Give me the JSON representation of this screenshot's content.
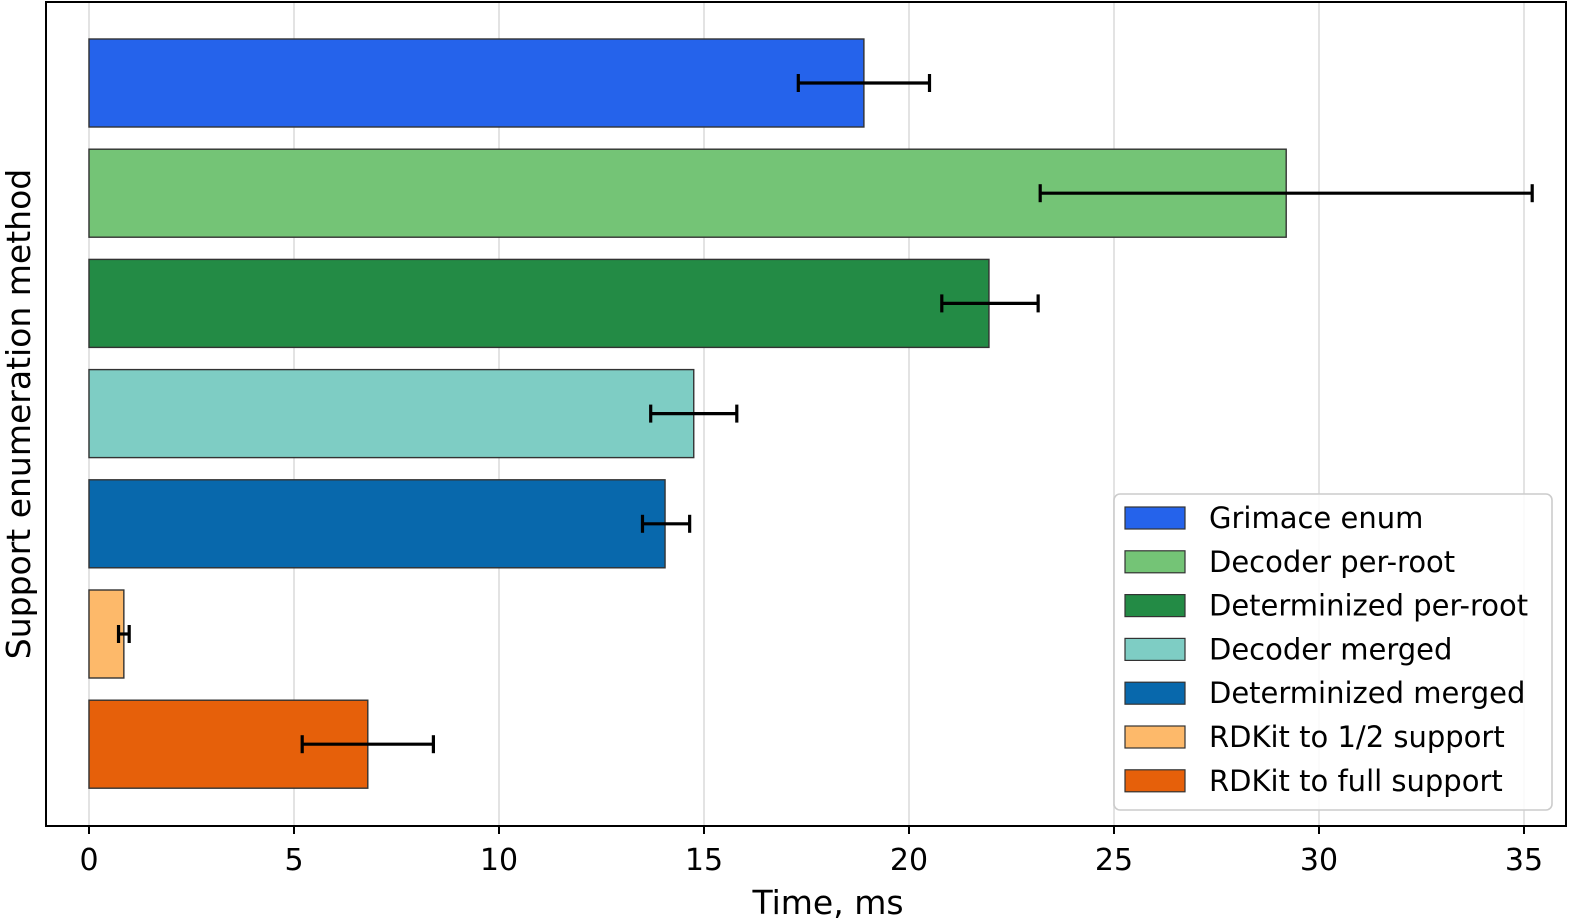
{
  "chart_data": {
    "type": "bar",
    "orientation": "horizontal",
    "xlabel": "Time, ms",
    "ylabel": "Support enumeration method",
    "xlim": [
      -1.05,
      35.6
    ],
    "xticks": [
      0,
      5,
      10,
      15,
      20,
      25,
      30,
      35
    ],
    "grid": "vertical",
    "legend_position": "lower-right",
    "bars": [
      {
        "name": "Grimace enum",
        "value": 18.9,
        "err_low": 17.3,
        "err_high": 20.5,
        "color": "#2563EB"
      },
      {
        "name": "Decoder per-root",
        "value": 29.2,
        "err_low": 23.2,
        "err_high": 35.2,
        "color": "#74C476"
      },
      {
        "name": "Determinized per-root",
        "value": 21.95,
        "err_low": 20.8,
        "err_high": 23.15,
        "color": "#238B45"
      },
      {
        "name": "Decoder merged",
        "value": 14.75,
        "err_low": 13.7,
        "err_high": 15.8,
        "color": "#7ECDC4"
      },
      {
        "name": "Determinized merged",
        "value": 14.05,
        "err_low": 13.5,
        "err_high": 14.65,
        "color": "#0868AC"
      },
      {
        "name": "RDKit to 1/2 support",
        "value": 0.85,
        "err_low": 0.72,
        "err_high": 0.98,
        "color": "#FDB96A"
      },
      {
        "name": "RDKit to full support",
        "value": 6.8,
        "err_low": 5.2,
        "err_high": 8.4,
        "color": "#E6600A"
      }
    ]
  }
}
